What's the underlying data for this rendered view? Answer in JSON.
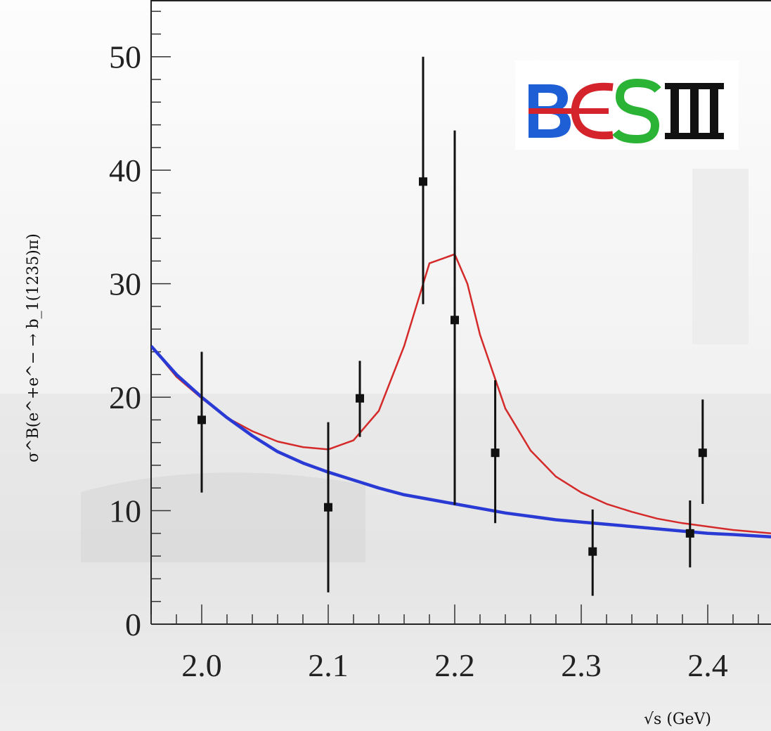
{
  "chart_data": {
    "type": "scatter",
    "title": "",
    "xlabel": "√s (GeV)",
    "ylabel": "σ^B(e^+e^− → b_1(1235)π)",
    "xlim": [
      1.96,
      2.45
    ],
    "ylim": [
      0,
      55
    ],
    "x_ticks": [
      "2.0",
      "2.1",
      "2.2",
      "2.3",
      "2.4"
    ],
    "y_ticks": [
      "0",
      "10",
      "20",
      "30",
      "40",
      "50"
    ],
    "grid": false,
    "logo_text": "BESIII",
    "points": [
      {
        "x": 2.0,
        "y": 18.0,
        "err_low": 11.6,
        "err_high": 24.0
      },
      {
        "x": 2.1,
        "y": 10.3,
        "err_low": 2.8,
        "err_high": 17.8
      },
      {
        "x": 2.125,
        "y": 19.9,
        "err_low": 16.5,
        "err_high": 23.2
      },
      {
        "x": 2.175,
        "y": 39.0,
        "err_low": 28.2,
        "err_high": 50.0
      },
      {
        "x": 2.2,
        "y": 26.8,
        "err_low": 10.5,
        "err_high": 43.5
      },
      {
        "x": 2.232,
        "y": 15.1,
        "err_low": 8.9,
        "err_high": 21.5
      },
      {
        "x": 2.309,
        "y": 6.4,
        "err_low": 2.5,
        "err_high": 10.1
      },
      {
        "x": 2.386,
        "y": 8.0,
        "err_low": 5.0,
        "err_high": 10.9
      },
      {
        "x": 2.396,
        "y": 15.1,
        "err_low": 10.6,
        "err_high": 19.8
      }
    ],
    "series": [
      {
        "color": "#d42a2a",
        "x": [
          1.96,
          1.98,
          2.0,
          2.02,
          2.04,
          2.06,
          2.08,
          2.1,
          2.12,
          2.14,
          2.16,
          2.18,
          2.2,
          2.21,
          2.22,
          2.24,
          2.26,
          2.28,
          2.3,
          2.32,
          2.34,
          2.36,
          2.38,
          2.4,
          2.42,
          2.45
        ],
        "y": [
          24.5,
          21.8,
          19.9,
          18.2,
          17.0,
          16.1,
          15.6,
          15.4,
          16.2,
          18.8,
          24.5,
          31.8,
          32.6,
          30.0,
          25.5,
          19.0,
          15.3,
          13.0,
          11.6,
          10.6,
          9.9,
          9.3,
          8.9,
          8.6,
          8.3,
          8.0
        ]
      },
      {
        "color": "#2a3ad4",
        "x": [
          1.96,
          1.98,
          2.0,
          2.02,
          2.04,
          2.06,
          2.08,
          2.1,
          2.12,
          2.14,
          2.16,
          2.18,
          2.2,
          2.22,
          2.24,
          2.26,
          2.28,
          2.3,
          2.32,
          2.34,
          2.36,
          2.38,
          2.4,
          2.42,
          2.45
        ],
        "y": [
          24.5,
          22.0,
          20.0,
          18.2,
          16.6,
          15.2,
          14.2,
          13.4,
          12.7,
          12.0,
          11.4,
          11.0,
          10.6,
          10.2,
          9.8,
          9.5,
          9.2,
          9.0,
          8.8,
          8.6,
          8.4,
          8.2,
          8.0,
          7.9,
          7.7
        ]
      }
    ]
  }
}
